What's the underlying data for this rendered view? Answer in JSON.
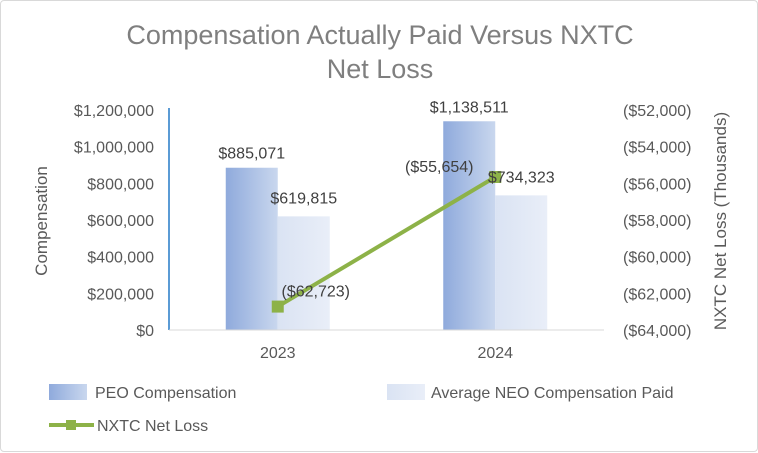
{
  "chart_data": {
    "type": "bar",
    "title_lines": [
      "Compensation Actually Paid Versus NXTC",
      "Net Loss"
    ],
    "categories": [
      "2023",
      "2024"
    ],
    "series": [
      {
        "name": "PEO Compensation",
        "kind": "bar",
        "axis": "left",
        "color": "#8faadc",
        "values": [
          885071,
          1138511
        ],
        "labels": [
          "$885,071",
          "$1,138,511"
        ]
      },
      {
        "name": "Average NEO Compensation Paid",
        "kind": "bar",
        "axis": "left",
        "color": "#dae3f3",
        "values": [
          619815,
          734323
        ],
        "labels": [
          "$619,815",
          "$734,323"
        ]
      },
      {
        "name": "NXTC Net Loss",
        "kind": "line",
        "axis": "right",
        "color": "#8db248",
        "values": [
          -62723,
          -55654
        ],
        "labels": [
          "($62,723)",
          "($55,654)"
        ]
      }
    ],
    "ylabel": "Compensation",
    "y2label": "NXTC Net Loss (Thousands)",
    "ylim": [
      0,
      1200000
    ],
    "y2lim": [
      -64000,
      -52000
    ],
    "yticks": [
      "$0",
      "$200,000",
      "$400,000",
      "$600,000",
      "$800,000",
      "$1,000,000",
      "$1,200,000"
    ],
    "y2ticks": [
      "($64,000)",
      "($62,000)",
      "($60,000)",
      "($58,000)",
      "($56,000)",
      "($54,000)",
      "($52,000)"
    ],
    "grid": false,
    "legend_position": "bottom",
    "axis_color": "#5b9bd5"
  }
}
